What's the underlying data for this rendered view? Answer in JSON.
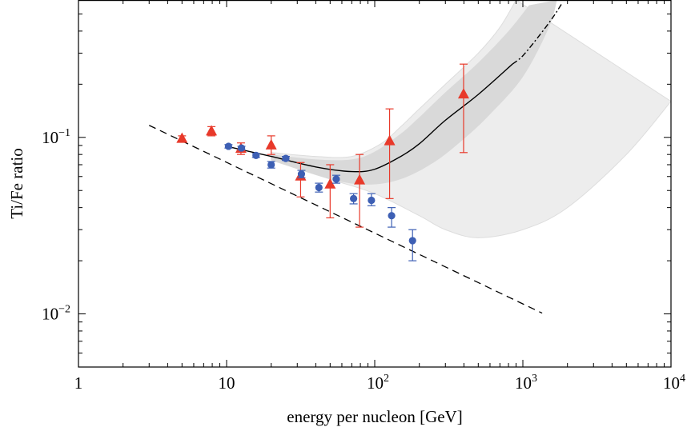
{
  "chart_data": {
    "type": "scatter",
    "xlabel": "energy per nucleon [GeV]",
    "ylabel": "Ti/Fe ratio",
    "xscale": "log",
    "yscale": "log",
    "xlim": [
      1,
      10000
    ],
    "ylim": [
      0.005,
      0.6
    ],
    "grid": false,
    "x_tick_labels": [
      {
        "value": 1,
        "base": "1",
        "exp": ""
      },
      {
        "value": 10,
        "base": "10",
        "exp": ""
      },
      {
        "value": 100,
        "base": "10",
        "exp": "2"
      },
      {
        "value": 1000,
        "base": "10",
        "exp": "3"
      },
      {
        "value": 10000,
        "base": "10",
        "exp": "4"
      }
    ],
    "y_tick_labels": [
      {
        "value": 0.1,
        "base": "10",
        "exp": "−1"
      },
      {
        "value": 0.01,
        "base": "10",
        "exp": "−2"
      }
    ],
    "series": [
      {
        "marker": "triangle",
        "color": "#e8392a",
        "points": [
          {
            "x": 5,
            "y": 0.098,
            "lo": 0.094,
            "hi": 0.102
          },
          {
            "x": 7.9,
            "y": 0.108,
            "lo": 0.102,
            "hi": 0.115
          },
          {
            "x": 12.5,
            "y": 0.086,
            "lo": 0.08,
            "hi": 0.093
          },
          {
            "x": 20,
            "y": 0.09,
            "lo": 0.08,
            "hi": 0.102
          },
          {
            "x": 31.6,
            "y": 0.06,
            "lo": 0.046,
            "hi": 0.072
          },
          {
            "x": 50,
            "y": 0.054,
            "lo": 0.035,
            "hi": 0.07
          },
          {
            "x": 79,
            "y": 0.057,
            "lo": 0.031,
            "hi": 0.08
          },
          {
            "x": 126,
            "y": 0.095,
            "lo": 0.045,
            "hi": 0.145
          },
          {
            "x": 398,
            "y": 0.175,
            "lo": 0.082,
            "hi": 0.26
          }
        ]
      },
      {
        "marker": "circle",
        "color": "#3d5fb4",
        "points": [
          {
            "x": 10.3,
            "y": 0.089,
            "lo": 0.087,
            "hi": 0.091
          },
          {
            "x": 12.6,
            "y": 0.087,
            "lo": 0.085,
            "hi": 0.089
          },
          {
            "x": 15.8,
            "y": 0.079,
            "lo": 0.077,
            "hi": 0.081
          },
          {
            "x": 20,
            "y": 0.07,
            "lo": 0.067,
            "hi": 0.073
          },
          {
            "x": 25.1,
            "y": 0.076,
            "lo": 0.074,
            "hi": 0.078
          },
          {
            "x": 32,
            "y": 0.062,
            "lo": 0.059,
            "hi": 0.065
          },
          {
            "x": 42,
            "y": 0.052,
            "lo": 0.049,
            "hi": 0.055
          },
          {
            "x": 55,
            "y": 0.058,
            "lo": 0.055,
            "hi": 0.061
          },
          {
            "x": 72,
            "y": 0.045,
            "lo": 0.042,
            "hi": 0.048
          },
          {
            "x": 95,
            "y": 0.044,
            "lo": 0.041,
            "hi": 0.048
          },
          {
            "x": 130,
            "y": 0.036,
            "lo": 0.031,
            "hi": 0.04
          },
          {
            "x": 180,
            "y": 0.026,
            "lo": 0.02,
            "hi": 0.03
          }
        ]
      }
    ],
    "curves": {
      "dashed_fit": {
        "x_start": 3,
        "x_end": 1350,
        "y_start": 0.117,
        "y_end": 0.0101
      },
      "model": {
        "solid": [
          [
            10,
            0.089
          ],
          [
            20,
            0.078
          ],
          [
            40,
            0.068
          ],
          [
            70,
            0.064
          ],
          [
            100,
            0.066
          ],
          [
            150,
            0.078
          ],
          [
            200,
            0.092
          ],
          [
            300,
            0.125
          ],
          [
            500,
            0.175
          ],
          [
            850,
            0.26
          ]
        ],
        "dotted": [
          [
            850,
            0.26
          ],
          [
            1000,
            0.29
          ],
          [
            1300,
            0.38
          ],
          [
            1600,
            0.48
          ],
          [
            1850,
            0.58
          ]
        ]
      },
      "inner_band": {
        "upper": [
          [
            20,
            0.08
          ],
          [
            40,
            0.075
          ],
          [
            70,
            0.075
          ],
          [
            100,
            0.083
          ],
          [
            150,
            0.105
          ],
          [
            200,
            0.13
          ],
          [
            300,
            0.18
          ],
          [
            500,
            0.265
          ],
          [
            800,
            0.4
          ],
          [
            1100,
            0.56
          ]
        ],
        "lower": [
          [
            1700,
            0.6
          ],
          [
            1500,
            0.42
          ],
          [
            1000,
            0.22
          ],
          [
            600,
            0.135
          ],
          [
            400,
            0.098
          ],
          [
            250,
            0.072
          ],
          [
            150,
            0.058
          ],
          [
            90,
            0.054
          ],
          [
            50,
            0.058
          ],
          [
            20,
            0.074
          ]
        ]
      },
      "outer_band": {
        "upper": [
          [
            20,
            0.082
          ],
          [
            40,
            0.078
          ],
          [
            70,
            0.078
          ],
          [
            110,
            0.092
          ],
          [
            150,
            0.115
          ],
          [
            200,
            0.145
          ],
          [
            300,
            0.2
          ],
          [
            500,
            0.3
          ],
          [
            700,
            0.42
          ],
          [
            900,
            0.6
          ]
        ],
        "lower": [
          [
            10000,
            0.16
          ],
          [
            5000,
            0.08
          ],
          [
            2000,
            0.04
          ],
          [
            1000,
            0.03
          ],
          [
            500,
            0.027
          ],
          [
            300,
            0.03
          ],
          [
            200,
            0.036
          ],
          [
            100,
            0.048
          ],
          [
            50,
            0.058
          ],
          [
            20,
            0.075
          ]
        ]
      }
    }
  }
}
